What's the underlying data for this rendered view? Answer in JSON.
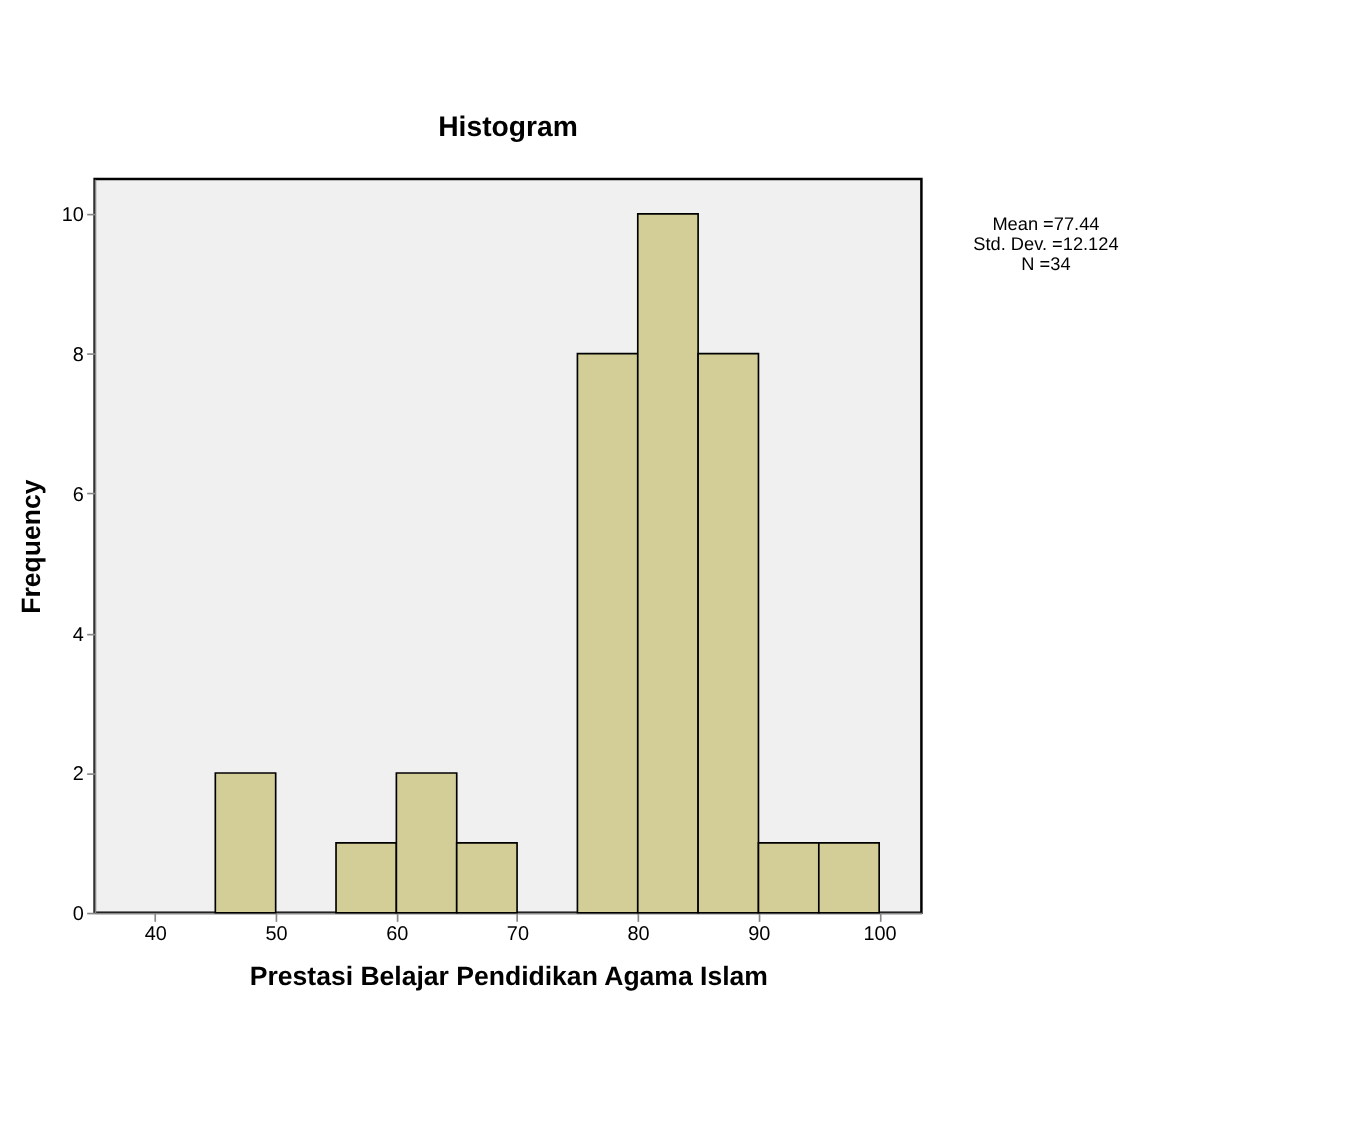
{
  "chart_data": {
    "type": "histogram",
    "title": "Histogram",
    "xlabel": "Prestasi Belajar Pendidikan Agama Islam",
    "ylabel": "Frequency",
    "bins": [
      45,
      50,
      55,
      60,
      65,
      70,
      75,
      80,
      85,
      90,
      95,
      100
    ],
    "values": [
      2,
      0,
      1,
      2,
      1,
      0,
      8,
      10,
      8,
      1,
      1
    ],
    "color": "#d3ce97",
    "xlim": [
      35,
      103.5
    ],
    "xticks": [
      40,
      50,
      60,
      70,
      80,
      90,
      100
    ],
    "ylim": [
      0,
      10.5
    ],
    "yticks": [
      0,
      2,
      4,
      6,
      8,
      10
    ],
    "grid": false,
    "annotations": [
      "Mean =77.44",
      "Std. Dev. =12.124",
      "N =34"
    ]
  }
}
